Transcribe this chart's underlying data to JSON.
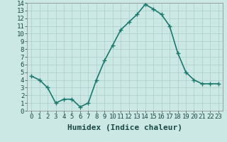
{
  "x": [
    0,
    1,
    2,
    3,
    4,
    5,
    6,
    7,
    8,
    9,
    10,
    11,
    12,
    13,
    14,
    15,
    16,
    17,
    18,
    19,
    20,
    21,
    22,
    23
  ],
  "y": [
    4.5,
    4.0,
    3.0,
    1.0,
    1.5,
    1.5,
    0.5,
    1.0,
    4.0,
    6.5,
    8.5,
    10.5,
    11.5,
    12.5,
    13.8,
    13.2,
    12.5,
    11.0,
    7.5,
    5.0,
    4.0,
    3.5,
    3.5,
    3.5
  ],
  "line_color": "#1a7a6e",
  "marker": "+",
  "marker_size": 5,
  "bg_color": "#cce8e4",
  "grid_color": "#aacfcb",
  "xlabel": "Humidex (Indice chaleur)",
  "xlim": [
    -0.5,
    23.5
  ],
  "ylim": [
    0,
    14
  ],
  "yticks": [
    0,
    1,
    2,
    3,
    4,
    5,
    6,
    7,
    8,
    9,
    10,
    11,
    12,
    13,
    14
  ],
  "xlabel_fontsize": 8,
  "tick_fontsize": 6.5,
  "line_width": 1.2
}
